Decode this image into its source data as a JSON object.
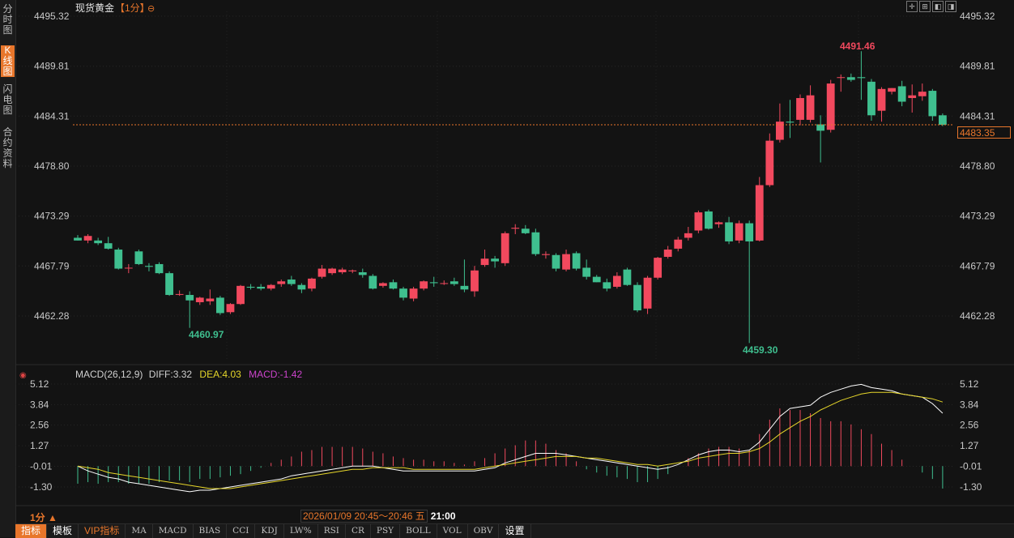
{
  "symbol_title": "现货黄金",
  "period_tag": "【1分】",
  "sidebar": [
    {
      "label": "分时图",
      "active": false
    },
    {
      "label": "K线图",
      "active": true
    },
    {
      "label": "闪电图",
      "active": false
    },
    {
      "label": "合约资料",
      "active": false
    }
  ],
  "price_axis_labels": [
    "4495.32",
    "4489.81",
    "4484.31",
    "4478.80",
    "4473.29",
    "4467.79",
    "4462.28"
  ],
  "current_price": "4483.35",
  "annotations": {
    "high": "4491.46",
    "low_left": "4460.97",
    "low": "4459.30"
  },
  "macd": {
    "name": "MACD(26,12,9)",
    "diff": "DIFF:3.32",
    "dea": "DEA:4.03",
    "macd": "MACD:-1.42",
    "axis_labels": [
      "5.12",
      "3.84",
      "2.56",
      "1.27",
      "-0.01",
      "-1.30"
    ]
  },
  "period_selector": "1分",
  "time_range": "2026/01/09 20:45～20:46 五",
  "next_time": "21:00",
  "bottom_tabs": [
    "指标",
    "模板",
    "VIP指标",
    "MA",
    "MACD",
    "BIAS",
    "CCI",
    "KDJ",
    "LW%",
    "RSI",
    "CR",
    "PSY",
    "BOLL",
    "VOL",
    "OBV",
    "设置"
  ],
  "colors": {
    "up": "#f2495e",
    "down": "#3fbf8f",
    "accent": "#e8762b",
    "diff_line": "#ffffff",
    "dea_line": "#e6d62a",
    "macd_label": "#cc44cc"
  },
  "chart_data": {
    "type": "candlestick",
    "ylim": [
      4459.0,
      4496.0
    ],
    "candles": [
      {
        "o": 4470.9,
        "h": 4471.2,
        "l": 4470.6,
        "c": 4470.6
      },
      {
        "o": 4470.6,
        "h": 4471.3,
        "l": 4470.3,
        "c": 4471.1
      },
      {
        "o": 4470.6,
        "h": 4470.9,
        "l": 4470.1,
        "c": 4470.3
      },
      {
        "o": 4470.3,
        "h": 4471.0,
        "l": 4469.6,
        "c": 4469.7
      },
      {
        "o": 4469.6,
        "h": 4469.8,
        "l": 4467.4,
        "c": 4467.5
      },
      {
        "o": 4467.6,
        "h": 4468.0,
        "l": 4467.0,
        "c": 4467.6
      },
      {
        "o": 4469.4,
        "h": 4469.6,
        "l": 4467.9,
        "c": 4468.0
      },
      {
        "o": 4467.8,
        "h": 4468.1,
        "l": 4467.2,
        "c": 4467.7
      },
      {
        "o": 4468.0,
        "h": 4468.2,
        "l": 4466.9,
        "c": 4467.0
      },
      {
        "o": 4467.0,
        "h": 4467.2,
        "l": 4464.5,
        "c": 4464.6
      },
      {
        "o": 4464.7,
        "h": 4465.1,
        "l": 4464.5,
        "c": 4464.7
      },
      {
        "o": 4464.6,
        "h": 4465.0,
        "l": 4460.97,
        "c": 4464.0
      },
      {
        "o": 4463.8,
        "h": 4464.4,
        "l": 4463.5,
        "c": 4464.3
      },
      {
        "o": 4463.9,
        "h": 4465.2,
        "l": 4463.5,
        "c": 4464.2
      },
      {
        "o": 4464.3,
        "h": 4464.5,
        "l": 4462.4,
        "c": 4462.6
      },
      {
        "o": 4462.7,
        "h": 4463.7,
        "l": 4462.5,
        "c": 4463.6
      },
      {
        "o": 4463.6,
        "h": 4465.7,
        "l": 4463.5,
        "c": 4465.6
      },
      {
        "o": 4465.5,
        "h": 4465.8,
        "l": 4465.2,
        "c": 4465.4
      },
      {
        "o": 4465.5,
        "h": 4465.8,
        "l": 4465.1,
        "c": 4465.3
      },
      {
        "o": 4465.3,
        "h": 4465.8,
        "l": 4465.1,
        "c": 4465.7
      },
      {
        "o": 4465.8,
        "h": 4466.3,
        "l": 4465.5,
        "c": 4466.1
      },
      {
        "o": 4466.3,
        "h": 4466.7,
        "l": 4465.6,
        "c": 4465.8
      },
      {
        "o": 4465.7,
        "h": 4465.9,
        "l": 4464.8,
        "c": 4465.2
      },
      {
        "o": 4465.3,
        "h": 4466.5,
        "l": 4465.0,
        "c": 4466.4
      },
      {
        "o": 4466.6,
        "h": 4467.9,
        "l": 4466.4,
        "c": 4467.5
      },
      {
        "o": 4467.0,
        "h": 4467.6,
        "l": 4466.8,
        "c": 4467.5
      },
      {
        "o": 4467.1,
        "h": 4467.6,
        "l": 4466.9,
        "c": 4467.4
      },
      {
        "o": 4467.2,
        "h": 4467.4,
        "l": 4467.0,
        "c": 4467.3
      },
      {
        "o": 4467.1,
        "h": 4467.5,
        "l": 4466.5,
        "c": 4466.8
      },
      {
        "o": 4466.7,
        "h": 4466.9,
        "l": 4465.2,
        "c": 4465.3
      },
      {
        "o": 4465.6,
        "h": 4466.0,
        "l": 4465.4,
        "c": 4465.9
      },
      {
        "o": 4466.0,
        "h": 4466.3,
        "l": 4465.2,
        "c": 4465.3
      },
      {
        "o": 4465.3,
        "h": 4465.5,
        "l": 4464.0,
        "c": 4464.3
      },
      {
        "o": 4464.2,
        "h": 4465.5,
        "l": 4463.9,
        "c": 4465.3
      },
      {
        "o": 4465.3,
        "h": 4466.2,
        "l": 4465.1,
        "c": 4466.1
      },
      {
        "o": 4466.0,
        "h": 4466.6,
        "l": 4465.5,
        "c": 4465.9
      },
      {
        "o": 4465.9,
        "h": 4466.2,
        "l": 4465.7,
        "c": 4465.9
      },
      {
        "o": 4466.1,
        "h": 4466.5,
        "l": 4465.6,
        "c": 4465.8
      },
      {
        "o": 4465.6,
        "h": 4468.5,
        "l": 4464.9,
        "c": 4465.2
      },
      {
        "o": 4465.0,
        "h": 4467.8,
        "l": 4464.4,
        "c": 4467.3
      },
      {
        "o": 4467.9,
        "h": 4469.6,
        "l": 4467.7,
        "c": 4468.6
      },
      {
        "o": 4468.6,
        "h": 4468.9,
        "l": 4467.6,
        "c": 4468.3
      },
      {
        "o": 4468.1,
        "h": 4471.6,
        "l": 4467.8,
        "c": 4471.4
      },
      {
        "o": 4471.9,
        "h": 4472.4,
        "l": 4471.3,
        "c": 4472.0
      },
      {
        "o": 4471.9,
        "h": 4472.3,
        "l": 4471.3,
        "c": 4471.4
      },
      {
        "o": 4471.5,
        "h": 4471.9,
        "l": 4468.9,
        "c": 4469.1
      },
      {
        "o": 4469.0,
        "h": 4469.4,
        "l": 4468.6,
        "c": 4469.1
      },
      {
        "o": 4469.0,
        "h": 4469.2,
        "l": 4467.2,
        "c": 4467.5
      },
      {
        "o": 4467.4,
        "h": 4469.6,
        "l": 4467.2,
        "c": 4469.1
      },
      {
        "o": 4469.2,
        "h": 4469.4,
        "l": 4467.3,
        "c": 4467.5
      },
      {
        "o": 4467.6,
        "h": 4468.5,
        "l": 4466.3,
        "c": 4466.6
      },
      {
        "o": 4466.6,
        "h": 4466.8,
        "l": 4466.0,
        "c": 4466.0
      },
      {
        "o": 4466.0,
        "h": 4466.4,
        "l": 4465.0,
        "c": 4465.3
      },
      {
        "o": 4465.5,
        "h": 4467.1,
        "l": 4465.3,
        "c": 4466.7
      },
      {
        "o": 4467.4,
        "h": 4467.6,
        "l": 4465.6,
        "c": 4465.7
      },
      {
        "o": 4465.7,
        "h": 4466.0,
        "l": 4462.7,
        "c": 4462.9
      },
      {
        "o": 4463.1,
        "h": 4466.7,
        "l": 4462.5,
        "c": 4466.5
      },
      {
        "o": 4466.5,
        "h": 4468.8,
        "l": 4466.3,
        "c": 4468.7
      },
      {
        "o": 4468.8,
        "h": 4470.0,
        "l": 4468.6,
        "c": 4469.6
      },
      {
        "o": 4469.7,
        "h": 4471.0,
        "l": 4469.4,
        "c": 4470.7
      },
      {
        "o": 4470.9,
        "h": 4472.1,
        "l": 4470.6,
        "c": 4471.4
      },
      {
        "o": 4471.7,
        "h": 4473.9,
        "l": 4471.4,
        "c": 4473.7
      },
      {
        "o": 4473.8,
        "h": 4474.0,
        "l": 4471.8,
        "c": 4471.9
      },
      {
        "o": 4472.4,
        "h": 4472.7,
        "l": 4472.0,
        "c": 4472.6
      },
      {
        "o": 4472.6,
        "h": 4473.2,
        "l": 4470.2,
        "c": 4470.5
      },
      {
        "o": 4470.6,
        "h": 4472.8,
        "l": 4470.3,
        "c": 4472.5
      },
      {
        "o": 4472.5,
        "h": 4472.8,
        "l": 4459.3,
        "c": 4470.5
      },
      {
        "o": 4470.6,
        "h": 4477.6,
        "l": 4470.5,
        "c": 4476.7
      },
      {
        "o": 4476.7,
        "h": 4482.4,
        "l": 4476.5,
        "c": 4481.6
      },
      {
        "o": 4481.7,
        "h": 4485.7,
        "l": 4481.4,
        "c": 4483.7
      },
      {
        "o": 4483.7,
        "h": 4486.1,
        "l": 4481.9,
        "c": 4483.6
      },
      {
        "o": 4483.9,
        "h": 4486.7,
        "l": 4483.3,
        "c": 4486.3
      },
      {
        "o": 4483.9,
        "h": 4487.7,
        "l": 4483.6,
        "c": 4486.6
      },
      {
        "o": 4483.4,
        "h": 4484.4,
        "l": 4479.2,
        "c": 4482.7
      },
      {
        "o": 4482.8,
        "h": 4488.3,
        "l": 4482.5,
        "c": 4487.9
      },
      {
        "o": 4488.6,
        "h": 4488.9,
        "l": 4487.0,
        "c": 4488.6
      },
      {
        "o": 4488.6,
        "h": 4489.0,
        "l": 4488.1,
        "c": 4488.3
      },
      {
        "o": 4488.6,
        "h": 4491.46,
        "l": 4486.1,
        "c": 4488.5
      },
      {
        "o": 4488.1,
        "h": 4488.4,
        "l": 4483.8,
        "c": 4484.4
      },
      {
        "o": 4484.9,
        "h": 4487.5,
        "l": 4483.7,
        "c": 4487.3
      },
      {
        "o": 4487.0,
        "h": 4487.4,
        "l": 4486.7,
        "c": 4487.4
      },
      {
        "o": 4487.6,
        "h": 4488.2,
        "l": 4485.4,
        "c": 4485.9
      },
      {
        "o": 4486.3,
        "h": 4487.8,
        "l": 4484.7,
        "c": 4486.6
      },
      {
        "o": 4486.5,
        "h": 4487.9,
        "l": 4486.0,
        "c": 4487.0
      },
      {
        "o": 4487.1,
        "h": 4487.3,
        "l": 4483.8,
        "c": 4484.3
      },
      {
        "o": 4484.4,
        "h": 4484.6,
        "l": 4483.2,
        "c": 4483.35
      }
    ],
    "macd_ylim": [
      -1.6,
      5.4
    ],
    "macd_hist": [
      -1.1,
      -1.0,
      -1.1,
      -1.0,
      -1.0,
      -1.1,
      -1.1,
      -1.1,
      -1.0,
      -0.9,
      -0.9,
      -1.0,
      -0.8,
      -0.8,
      -0.7,
      -0.6,
      -0.5,
      -0.3,
      -0.1,
      0.2,
      0.4,
      0.6,
      0.9,
      1.0,
      1.2,
      1.2,
      1.2,
      1.2,
      1.1,
      0.9,
      0.8,
      0.6,
      0.5,
      0.4,
      0.4,
      0.3,
      0.3,
      0.2,
      0.1,
      0.3,
      0.5,
      0.8,
      1.1,
      1.3,
      1.6,
      1.6,
      1.4,
      1.0,
      0.8,
      0.3,
      -0.2,
      -0.4,
      -0.6,
      -0.7,
      -0.8,
      -1.0,
      -1.0,
      -0.8,
      -0.5,
      0.0,
      0.5,
      0.8,
      1.1,
      1.2,
      1.2,
      1.1,
      1.0,
      2.0,
      2.9,
      3.6,
      3.5,
      3.5,
      3.3,
      3.0,
      2.8,
      2.8,
      2.6,
      2.3,
      2.0,
      1.4,
      1.0,
      0.4,
      0.0,
      -0.4,
      -0.8,
      -1.4
    ],
    "diff": [
      -0.0,
      -0.3,
      -0.5,
      -0.7,
      -0.8,
      -1.0,
      -1.1,
      -1.2,
      -1.3,
      -1.4,
      -1.5,
      -1.6,
      -1.5,
      -1.5,
      -1.4,
      -1.3,
      -1.2,
      -1.1,
      -1.0,
      -0.9,
      -0.8,
      -0.6,
      -0.5,
      -0.4,
      -0.3,
      -0.2,
      -0.1,
      0.0,
      0.0,
      0.0,
      -0.1,
      -0.2,
      -0.3,
      -0.3,
      -0.3,
      -0.3,
      -0.3,
      -0.3,
      -0.3,
      -0.3,
      -0.2,
      -0.1,
      0.2,
      0.4,
      0.6,
      0.8,
      0.8,
      0.8,
      0.7,
      0.6,
      0.5,
      0.4,
      0.3,
      0.2,
      0.1,
      0.0,
      -0.1,
      -0.2,
      -0.1,
      0.1,
      0.4,
      0.7,
      0.9,
      1.0,
      1.0,
      0.9,
      1.0,
      1.5,
      2.3,
      3.1,
      3.6,
      3.7,
      3.8,
      4.3,
      4.6,
      4.8,
      5.0,
      5.1,
      4.9,
      4.8,
      4.7,
      4.5,
      4.4,
      4.3,
      3.9,
      3.3
    ],
    "dea": [
      -0.0,
      -0.1,
      -0.2,
      -0.4,
      -0.5,
      -0.6,
      -0.7,
      -0.8,
      -0.9,
      -1.0,
      -1.1,
      -1.2,
      -1.3,
      -1.4,
      -1.4,
      -1.4,
      -1.3,
      -1.2,
      -1.1,
      -1.0,
      -0.9,
      -0.8,
      -0.7,
      -0.6,
      -0.5,
      -0.4,
      -0.3,
      -0.2,
      -0.2,
      -0.1,
      -0.1,
      -0.1,
      -0.1,
      -0.2,
      -0.2,
      -0.2,
      -0.2,
      -0.2,
      -0.2,
      -0.2,
      -0.1,
      0.0,
      0.1,
      0.2,
      0.3,
      0.4,
      0.5,
      0.6,
      0.6,
      0.6,
      0.5,
      0.5,
      0.4,
      0.3,
      0.2,
      0.1,
      0.1,
      0.0,
      0.1,
      0.2,
      0.3,
      0.5,
      0.6,
      0.7,
      0.8,
      0.8,
      0.9,
      1.1,
      1.5,
      2.0,
      2.4,
      2.8,
      3.1,
      3.5,
      3.8,
      4.1,
      4.3,
      4.5,
      4.6,
      4.6,
      4.6,
      4.5,
      4.4,
      4.3,
      4.2,
      4.0
    ]
  }
}
